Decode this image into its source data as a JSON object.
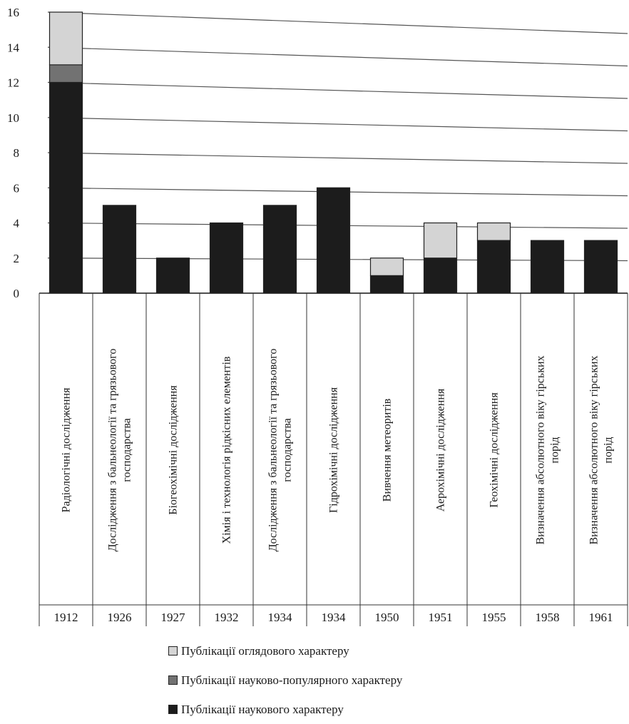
{
  "chart_data": {
    "type": "bar",
    "stacked": true,
    "categories": [
      {
        "label": [
          "Радіологічні дослідження"
        ],
        "year": "1912"
      },
      {
        "label": [
          "Дослідження з бальнеології та грязьового",
          "господарства"
        ],
        "year": "1926"
      },
      {
        "label": [
          "Біогеохімічні дослідження"
        ],
        "year": "1927"
      },
      {
        "label": [
          "Хімія і технологія рідкісних елементів"
        ],
        "year": "1932"
      },
      {
        "label": [
          "Дослідження з бальнеології та грязьового",
          "господарства"
        ],
        "year": "1934"
      },
      {
        "label": [
          "Гідрохімічні дослідження"
        ],
        "year": "1934"
      },
      {
        "label": [
          "Вивчення метеоритів"
        ],
        "year": "1950"
      },
      {
        "label": [
          "Аерохімічні дослідження"
        ],
        "year": "1951"
      },
      {
        "label": [
          "Геохімічні дослідження"
        ],
        "year": "1955"
      },
      {
        "label": [
          "Визначення абсолютного віку гірських",
          "порід"
        ],
        "year": "1958"
      },
      {
        "label": [
          "Визначення абсолютного віку гірських",
          "порід"
        ],
        "year": "1961"
      }
    ],
    "series": [
      {
        "name": "Публікації наукового характеру",
        "color": "#1c1c1c",
        "values": [
          12,
          5,
          2,
          4,
          5,
          6,
          1,
          2,
          3,
          3,
          3
        ]
      },
      {
        "name": "Публікації науково-популярного характеру",
        "color": "#727272",
        "values": [
          1,
          0,
          0,
          0,
          0,
          0,
          0,
          0,
          0,
          0,
          0
        ]
      },
      {
        "name": "Публікації оглядового характеру",
        "color": "#d4d4d4",
        "values": [
          3,
          0,
          0,
          0,
          0,
          0,
          1,
          2,
          1,
          0,
          0
        ]
      }
    ],
    "yticks": [
      0,
      2,
      4,
      6,
      8,
      10,
      12,
      14,
      16
    ],
    "ylim": [
      0,
      16
    ],
    "grid": true,
    "legend_position": "bottom",
    "legend_order": [
      2,
      1,
      0
    ]
  }
}
